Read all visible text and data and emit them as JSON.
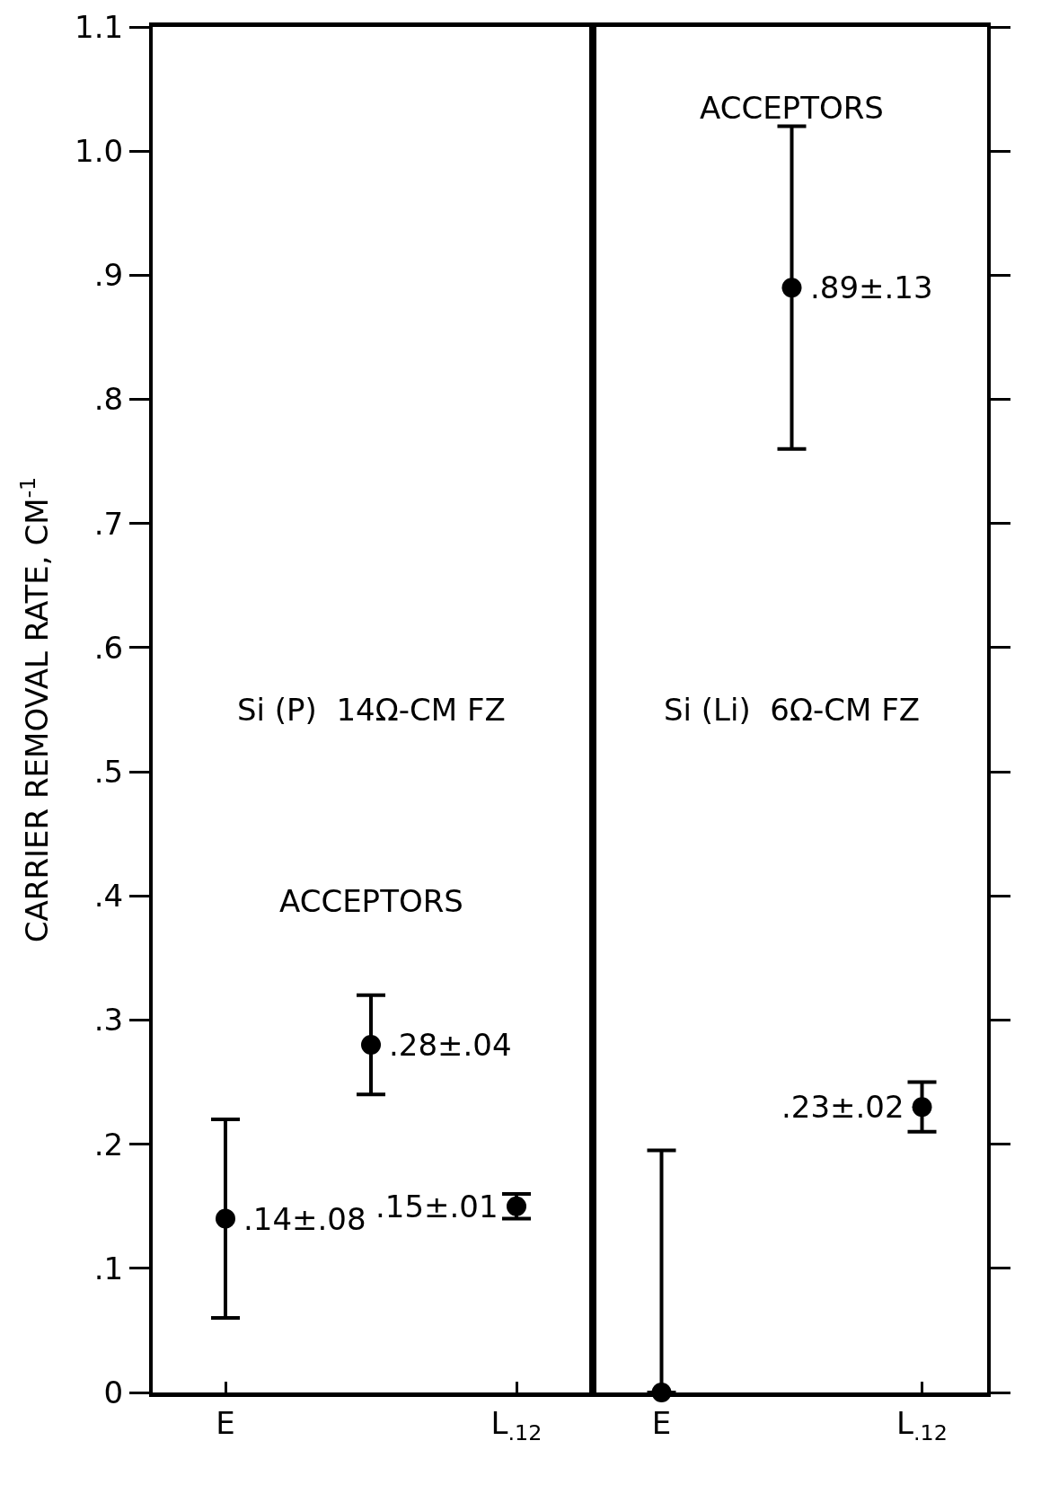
{
  "chart_data": [
    {
      "type": "scatter",
      "ylabel": "CARRIER REMOVAL RATE, CM$^{-1}$",
      "categories": [
        "E",
        null,
        "L$_{.12}$"
      ],
      "values": [
        0.14,
        0.28,
        0.15
      ],
      "errors": [
        0.08,
        0.04,
        0.01
      ],
      "value_labels": [
        ".14±.08",
        ".28±.04",
        ".15±.01"
      ],
      "color": "#000000",
      "marker": "circle",
      "ylim": [
        0,
        1.1
      ],
      "yticks": [
        {
          "value": 0,
          "label": "0"
        },
        {
          "value": 0.1,
          "label": ".1"
        },
        {
          "value": 0.2,
          "label": ".2"
        },
        {
          "value": 0.3,
          "label": ".3"
        },
        {
          "value": 0.4,
          "label": ".4"
        },
        {
          "value": 0.5,
          "label": ".5"
        },
        {
          "value": 0.6,
          "label": ".6"
        },
        {
          "value": 0.7,
          "label": ".7"
        },
        {
          "value": 0.8,
          "label": ".8"
        },
        {
          "value": 0.9,
          "label": ".9"
        },
        {
          "value": 1.0,
          "label": "1.0"
        },
        {
          "value": 1.1,
          "label": "1.1"
        }
      ],
      "annotations": [
        "ACCEPTORS",
        "Si (P)  14Ω-CM FZ"
      ],
      "grid": false
    },
    {
      "type": "scatter",
      "categories": [
        "E",
        null,
        "L$_{.12}$"
      ],
      "values": [
        0,
        0.89,
        0.23
      ],
      "errors": [
        [
          0,
          0.195
        ],
        0.13,
        0.02
      ],
      "value_labels": [
        null,
        ".89±.13",
        ".23±.02"
      ],
      "color": "#000000",
      "marker": "circle",
      "ylim": [
        0,
        1.1
      ],
      "yticks": [
        {
          "value": 0,
          "label": null
        },
        {
          "value": 0.1,
          "label": null
        },
        {
          "value": 0.2,
          "label": null
        },
        {
          "value": 0.3,
          "label": null
        },
        {
          "value": 0.4,
          "label": null
        },
        {
          "value": 0.5,
          "label": null
        },
        {
          "value": 0.6,
          "label": null
        },
        {
          "value": 0.7,
          "label": null
        },
        {
          "value": 0.8,
          "label": null
        },
        {
          "value": 0.9,
          "label": null
        },
        {
          "value": 1.0,
          "label": null
        },
        {
          "value": 1.1,
          "label": null
        }
      ],
      "tick_labels": "x",
      "annotations": [
        "ACCEPTORS",
        "Si (Li)  6Ω-CM FZ"
      ],
      "grid": false
    }
  ]
}
